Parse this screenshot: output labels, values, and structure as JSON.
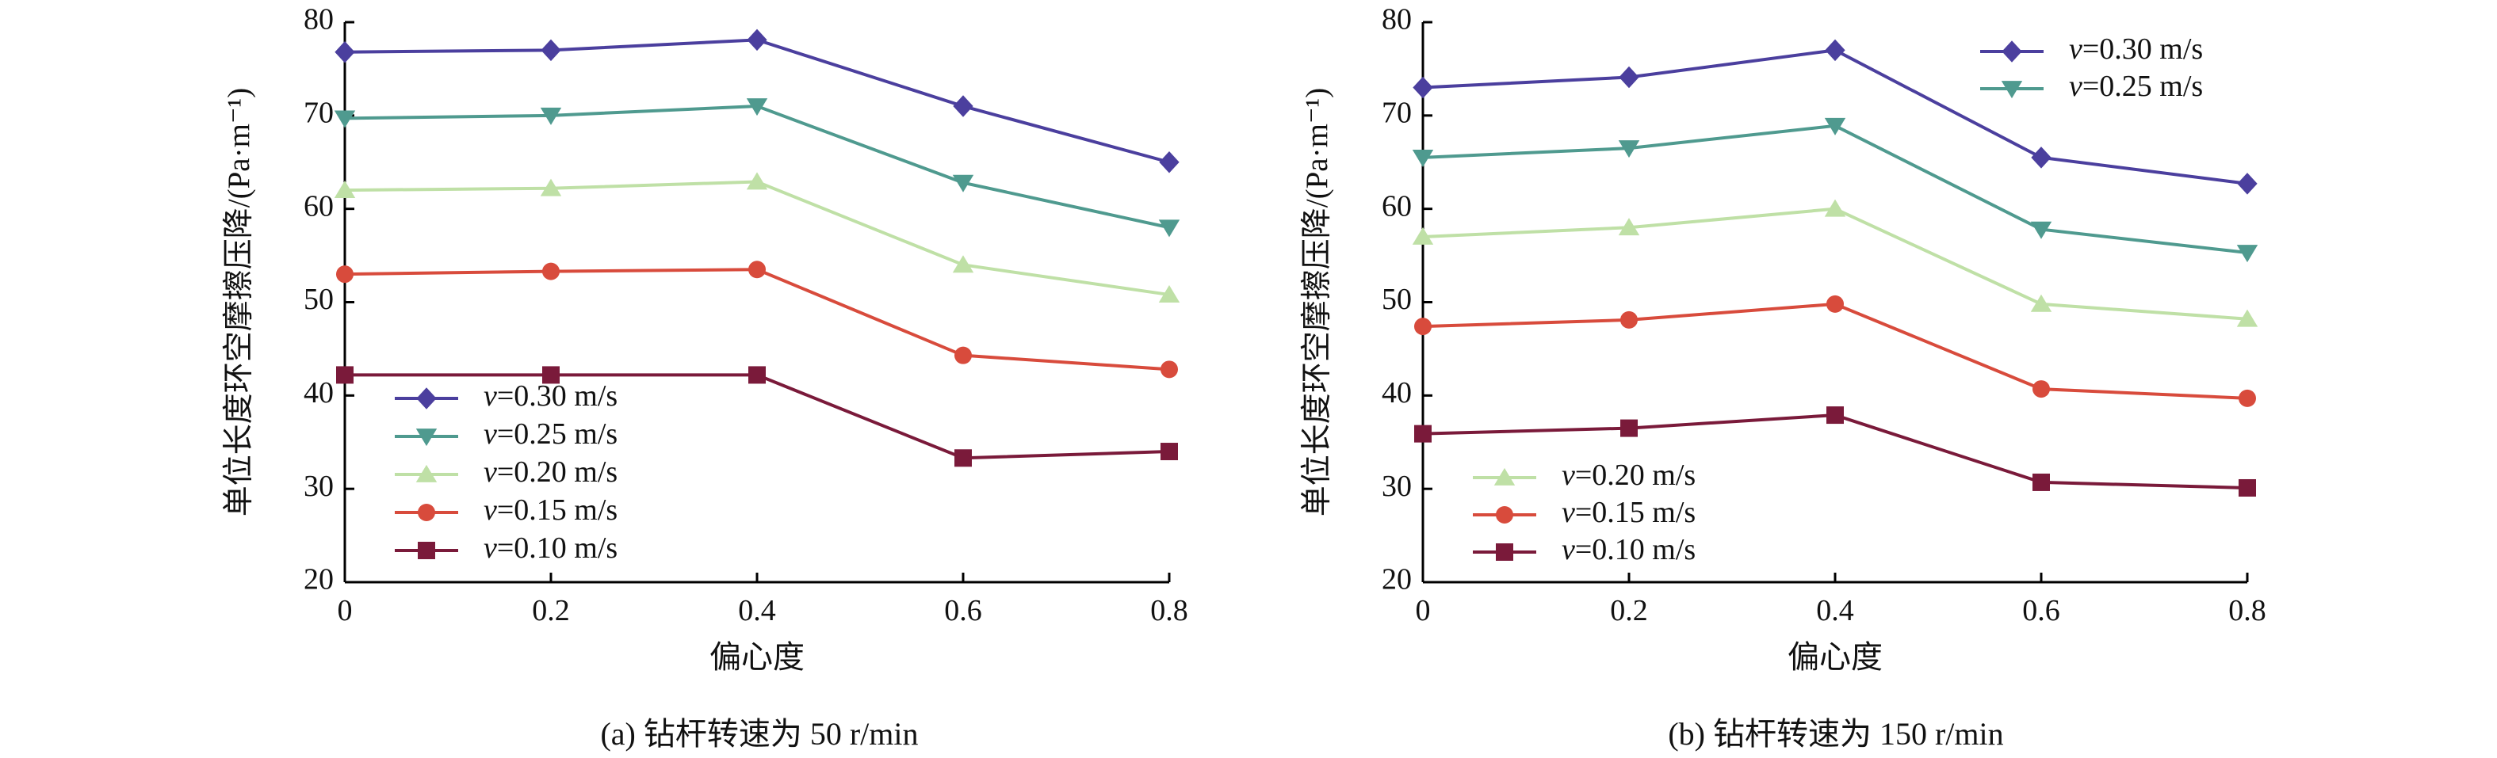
{
  "chart_data": [
    {
      "type": "line",
      "caption": "(a) 钻杆转速为 50 r/min",
      "xlabel": "偏心度",
      "ylabel": "单位长度环空摩擦压降/(Pa·m⁻¹)",
      "x": [
        0,
        0.2,
        0.4,
        0.6,
        0.8
      ],
      "x_ticks": [
        "0",
        "0.2",
        "0.4",
        "0.6",
        "0.8"
      ],
      "y_ticks": [
        "20",
        "30",
        "40",
        "50",
        "60",
        "70",
        "80"
      ],
      "xlim": [
        0,
        0.8
      ],
      "ylim": [
        20,
        80
      ],
      "legend_position": "bottom-left",
      "legend_order": [
        0,
        1,
        2,
        3,
        4
      ],
      "series": [
        {
          "name": "v=0.30 m/s",
          "marker": "diamond",
          "color": "#4b3f9e",
          "values": [
            76.8,
            77.0,
            78.1,
            71.0,
            65.0
          ]
        },
        {
          "name": "v=0.25 m/s",
          "marker": "triangle-down",
          "color": "#4f9a8f",
          "values": [
            69.7,
            70.0,
            71.0,
            62.8,
            58.0
          ]
        },
        {
          "name": "v=0.20 m/s",
          "marker": "triangle-up",
          "color": "#bfe0a6",
          "values": [
            62.0,
            62.2,
            62.9,
            54.0,
            50.8
          ]
        },
        {
          "name": "v=0.15 m/s",
          "marker": "circle",
          "color": "#d84b3c",
          "values": [
            53.0,
            53.3,
            53.5,
            44.3,
            42.8
          ]
        },
        {
          "name": "v=0.10 m/s",
          "marker": "square",
          "color": "#7a1a3a",
          "values": [
            42.2,
            42.2,
            42.2,
            33.3,
            34.0
          ]
        }
      ]
    },
    {
      "type": "line",
      "caption": "(b) 钻杆转速为 150 r/min",
      "xlabel": "偏心度",
      "ylabel": "单位长度环空摩擦压降/(Pa·m⁻¹)",
      "x": [
        0,
        0.2,
        0.4,
        0.6,
        0.8
      ],
      "x_ticks": [
        "0",
        "0.2",
        "0.4",
        "0.6",
        "0.8"
      ],
      "y_ticks": [
        "20",
        "30",
        "40",
        "50",
        "60",
        "70",
        "80"
      ],
      "xlim": [
        0,
        0.8
      ],
      "ylim": [
        20,
        80
      ],
      "legend_position": "split: top-right (0.30, 0.25) and bottom-left (0.20, 0.15, 0.10)",
      "legend_groups": [
        [
          0,
          1
        ],
        [
          2,
          3,
          4
        ]
      ],
      "series": [
        {
          "name": "v=0.30 m/s",
          "marker": "diamond",
          "color": "#4b3f9e",
          "values": [
            73.0,
            74.1,
            77.0,
            65.5,
            62.7
          ]
        },
        {
          "name": "v=0.25 m/s",
          "marker": "triangle-down",
          "color": "#4f9a8f",
          "values": [
            65.5,
            66.5,
            68.9,
            57.8,
            55.3
          ]
        },
        {
          "name": "v=0.20 m/s",
          "marker": "triangle-up",
          "color": "#bfe0a6",
          "values": [
            57.0,
            58.0,
            60.0,
            49.8,
            48.2
          ]
        },
        {
          "name": "v=0.15 m/s",
          "marker": "circle",
          "color": "#d84b3c",
          "values": [
            47.4,
            48.1,
            49.8,
            40.7,
            39.7
          ]
        },
        {
          "name": "v=0.10 m/s",
          "marker": "square",
          "color": "#7a1a3a",
          "values": [
            35.9,
            36.5,
            37.9,
            30.7,
            30.1
          ]
        }
      ]
    }
  ]
}
